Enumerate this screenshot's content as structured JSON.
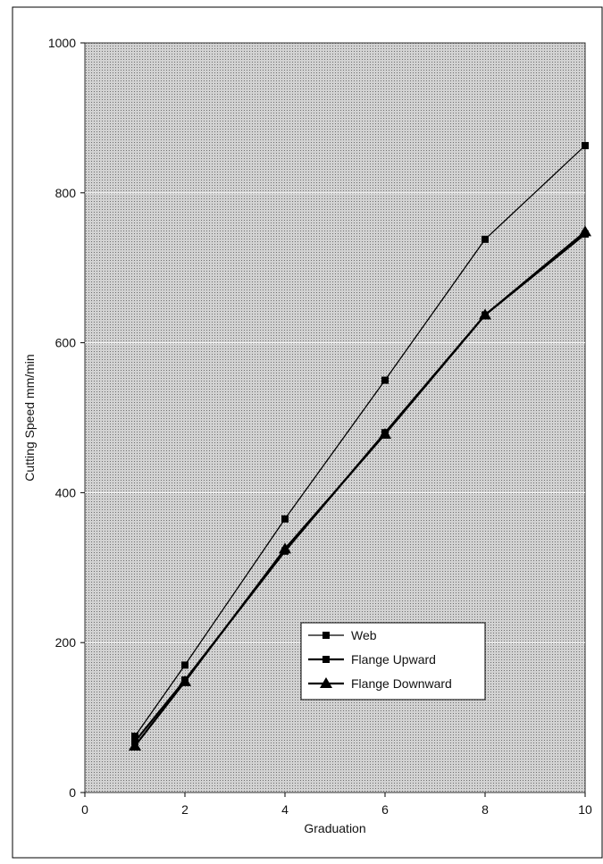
{
  "chart_data": {
    "type": "line",
    "title": "",
    "xlabel": "Graduation",
    "ylabel": "Cutting Speed mm/min",
    "xlim": [
      0,
      10
    ],
    "ylim": [
      0,
      1000
    ],
    "xticks": [
      0,
      2,
      4,
      6,
      8,
      10
    ],
    "yticks": [
      0,
      200,
      400,
      600,
      800,
      1000
    ],
    "grid": "horizontal",
    "legend_position": "lower-right",
    "x": [
      1,
      2,
      4,
      6,
      8,
      10
    ],
    "series": [
      {
        "name": "Web",
        "marker": "square",
        "values": [
          75,
          170,
          365,
          550,
          738,
          863
        ]
      },
      {
        "name": "Flange Upward",
        "marker": "square",
        "values": [
          68,
          150,
          322,
          480,
          637,
          745
        ]
      },
      {
        "name": "Flange Downward",
        "marker": "triangle",
        "values": [
          62,
          148,
          325,
          478,
          637,
          748
        ]
      }
    ],
    "colors": {
      "line": "#000000",
      "plot_background": "#c9c9c9",
      "gridline": "#ffffff"
    }
  }
}
